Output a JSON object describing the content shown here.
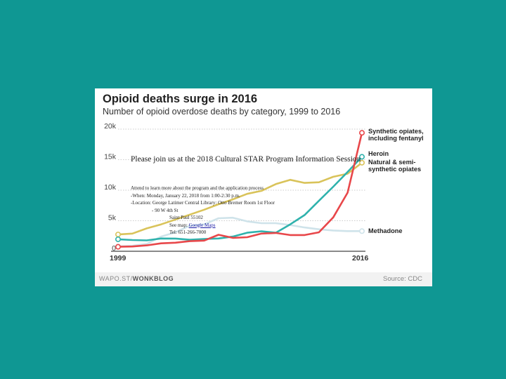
{
  "chart_data": {
    "type": "line",
    "title": "Opioid deaths surge in 2016",
    "subtitle": "Number of opioid overdose deaths by category, 1999 to 2016",
    "x": [
      1999,
      2000,
      2001,
      2002,
      2003,
      2004,
      2005,
      2006,
      2007,
      2008,
      2009,
      2010,
      2011,
      2012,
      2013,
      2014,
      2015,
      2016
    ],
    "x_tick_labels": [
      "1999",
      "2016"
    ],
    "y_tick_labels": [
      "0",
      "5k",
      "10k",
      "15k",
      "20k"
    ],
    "ylim": [
      0,
      20000
    ],
    "grid": true,
    "series": [
      {
        "name": "Synthetic opiates, including fentanyl",
        "color": "#e8474a",
        "values": [
          730,
          780,
          960,
          1300,
          1400,
          1650,
          1750,
          2700,
          2200,
          2300,
          2900,
          3000,
          2650,
          2650,
          3100,
          5550,
          9600,
          19400
        ]
      },
      {
        "name": "Heroin",
        "color": "#2fb2ad",
        "values": [
          1960,
          1840,
          1780,
          2090,
          2080,
          1880,
          2010,
          2090,
          2400,
          3040,
          3280,
          3040,
          4400,
          5930,
          8260,
          10570,
          12990,
          15470
        ]
      },
      {
        "name": "Natural & semi-synthetic opiates",
        "color": "#d9c35a",
        "values": [
          2750,
          2900,
          3750,
          4400,
          5200,
          6000,
          6800,
          7700,
          8500,
          9400,
          9900,
          11000,
          11700,
          11200,
          11300,
          12200,
          12700,
          14500
        ]
      },
      {
        "name": "Methadone",
        "color": "#cfe3ea",
        "values": [
          780,
          900,
          1200,
          2400,
          3100,
          4200,
          4400,
          5400,
          5500,
          4900,
          4600,
          4600,
          4300,
          3900,
          3600,
          3400,
          3300,
          3300
        ]
      }
    ],
    "source": "Source: CDC",
    "credit": "WAPO.ST/",
    "credit_bold": "WONKBLOG"
  },
  "overlay": {
    "title": "Please join us at the 2018 Cultural STAR Program Information Session",
    "lines": [
      "Attend to learn more about the program and the application process",
      "-When: Monday, January 22, 2018 from 1:00-2:30 p.m.",
      "-Location: George Latimer Central Library: Otto Bremer Room 1st Floor",
      "- 90 W 4th St",
      "Saint Paul 55102",
      "See map: ",
      "Tel: 651-266-7000"
    ],
    "map_link": "Google Maps"
  }
}
